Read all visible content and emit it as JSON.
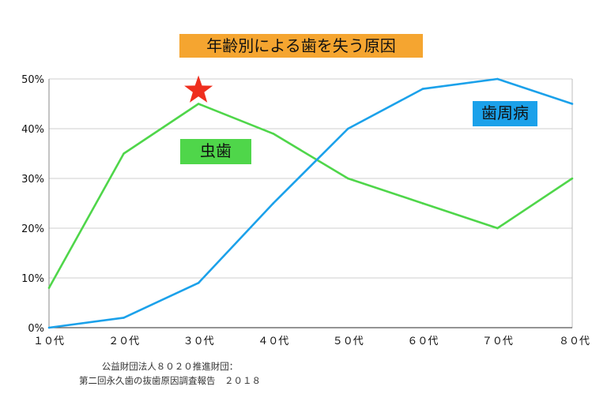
{
  "chart_data": {
    "type": "line",
    "title": "年齢別による歯を失う原因",
    "categories": [
      "１０代",
      "２０代",
      "３０代",
      "４０代",
      "５０代",
      "６０代",
      "７０代",
      "８０代"
    ],
    "y_ticks": [
      "0%",
      "10%",
      "20%",
      "30%",
      "40%",
      "50%"
    ],
    "ylim": [
      0,
      50
    ],
    "grid": true,
    "series": [
      {
        "name": "虫歯",
        "color": "#4fd64a",
        "values": [
          8,
          35,
          45,
          39,
          30,
          25,
          20,
          30
        ]
      },
      {
        "name": "歯周病",
        "color": "#1ba1ea",
        "values": [
          0,
          2,
          9,
          25,
          40,
          48,
          50,
          45
        ]
      }
    ],
    "annotations": [
      {
        "type": "star",
        "color": "#ef2e1e",
        "series": "虫歯",
        "category": "３０代"
      }
    ]
  },
  "credit": {
    "line1": "公益財団法人８０２０推進財団：",
    "line2": "第二回永久歯の抜歯原因調査報告　２０１８"
  }
}
